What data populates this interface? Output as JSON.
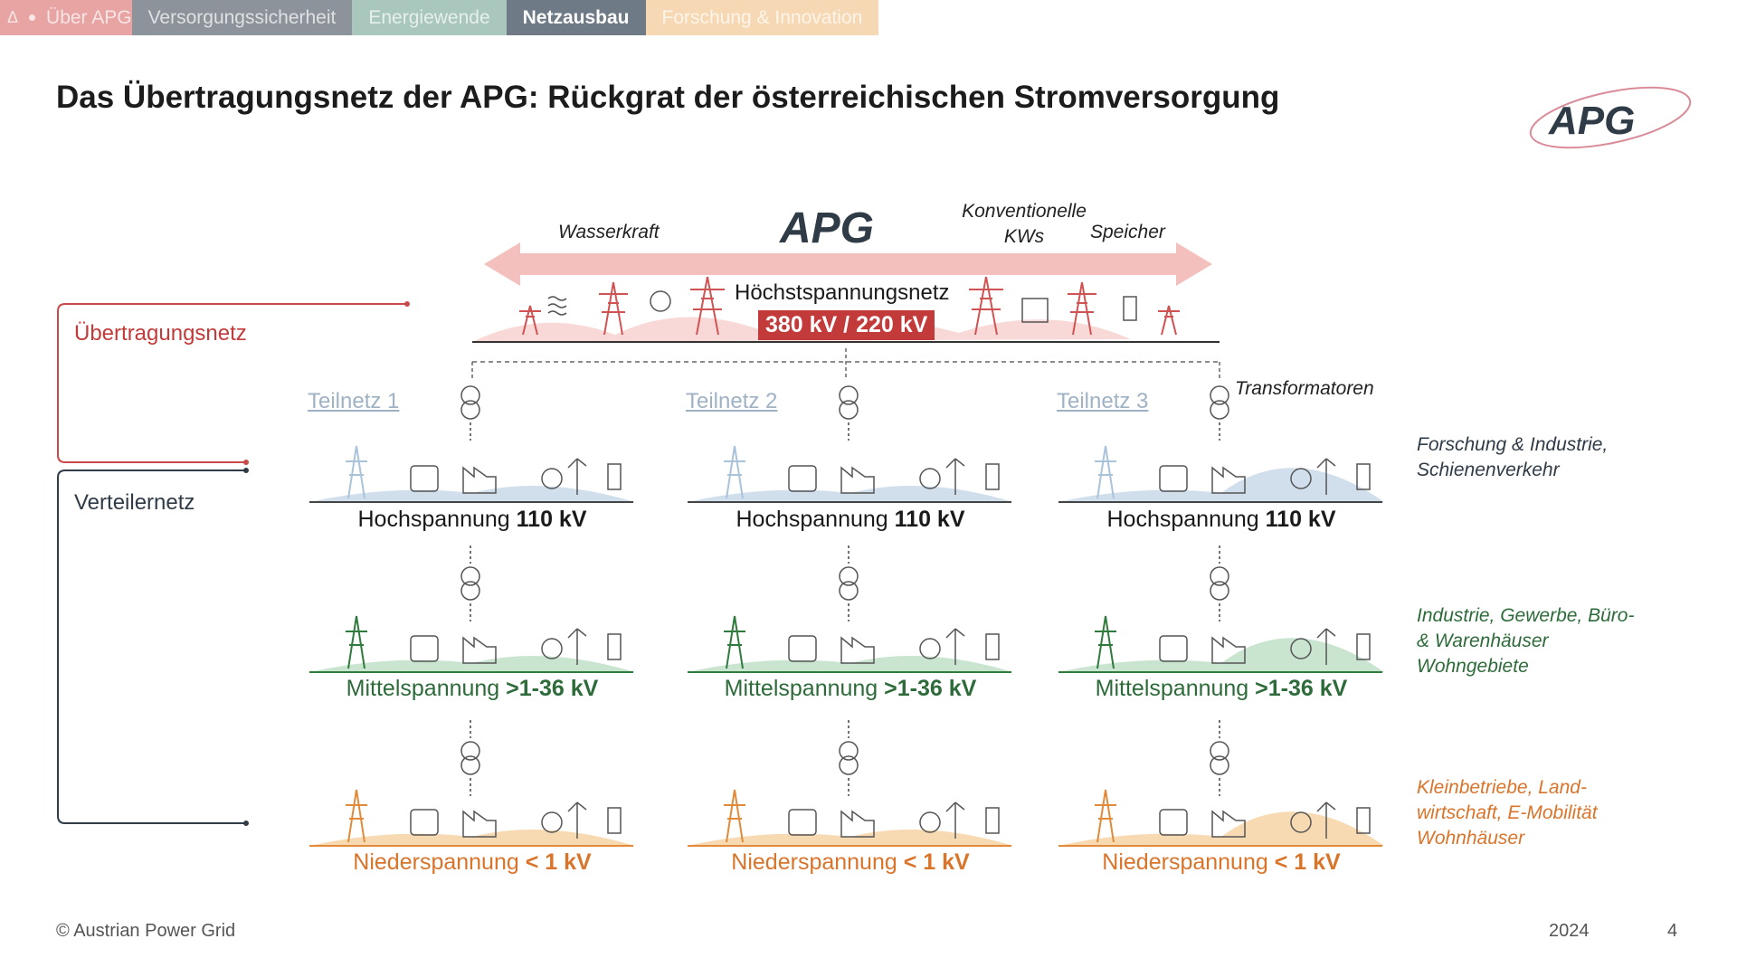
{
  "nav": {
    "home_icon": "delta-icon",
    "tabs": [
      {
        "label": "Über APG",
        "color": "#e8a3a3",
        "active": false
      },
      {
        "label": "Versorgungssicherheit",
        "color": "#8c939b",
        "active": false
      },
      {
        "label": "Energiewende",
        "color": "#a9c7bd",
        "active": false
      },
      {
        "label": "Netzausbau",
        "color": "#6e7a86",
        "active": true
      },
      {
        "label": "Forschung & Innovation",
        "color": "#f6d9b4",
        "active": false
      }
    ]
  },
  "title": "Das Übertragungsnetz der APG: Rückgrat der österreichischen Stromversorgung",
  "logo_text": "APG",
  "diagram": {
    "top_labels": {
      "wasserkraft": "Wasserkraft",
      "konventionelle": "Konventionelle KWs",
      "speicher": "Speicher"
    },
    "hoechst_label": "Höchstspannungsnetz",
    "hoechst_kv": "380 kV / 220 kV",
    "left": {
      "uebertragung": "Übertragungsnetz",
      "verteiler": "Verteilernetz"
    },
    "teilnetze": [
      "Teilnetz 1",
      "Teilnetz 2",
      "Teilnetz 3"
    ],
    "transformatoren": "Transformatoren",
    "levels": {
      "hoch": {
        "name": "Hochspannung ",
        "kv": "110 kV",
        "color": "#1a1a1a"
      },
      "mittel": {
        "name": "Mittelspannung ",
        "kv": ">1-36 kV",
        "color": "#2e6b3a"
      },
      "nieder": {
        "name": "Niederspannung ",
        "kv": "< 1 kV",
        "color": "#d9742b"
      }
    },
    "right_notes": {
      "hoch": "Forschung & Industrie, Schienenverkehr",
      "mittel": "Industrie, Gewerbe, Büro- & Warenhäuser Wohngebiete",
      "nieder": "Kleinbetriebe, Land-wirtschaft, E-Mobilität Wohnhäuser"
    },
    "colors": {
      "red": "#c23a3a",
      "blue": "#a9c3da",
      "green": "#2f7a3d",
      "orange": "#e08a3a",
      "dark": "#2f3b47"
    }
  },
  "footer": {
    "copyright": "© Austrian Power Grid",
    "year": "2024",
    "page": "4"
  }
}
